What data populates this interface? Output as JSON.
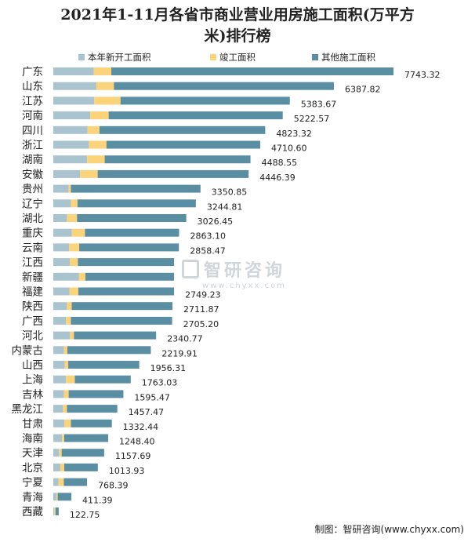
{
  "chart_data": {
    "type": "bar",
    "orientation": "horizontal",
    "stacked": true,
    "title_line1": "2021年1-11月各省市商业营业用房施工面积(万平方",
    "title_line2": "米)排行榜",
    "categories": [
      "广东",
      "山东",
      "江苏",
      "河南",
      "四川",
      "浙江",
      "湖南",
      "安徽",
      "贵州",
      "辽宁",
      "湖北",
      "重庆",
      "云南",
      "江西",
      "新疆",
      "福建",
      "陕西",
      "广西",
      "河北",
      "内蒙古",
      "山西",
      "上海",
      "吉林",
      "黑龙江",
      "甘肃",
      "海南",
      "天津",
      "北京",
      "宁夏",
      "青海",
      "西藏"
    ],
    "totals": [
      7743.32,
      6387.82,
      5383.67,
      5222.57,
      4823.32,
      4710.6,
      4488.55,
      4446.39,
      3350.85,
      3244.81,
      3026.45,
      2863.1,
      2858.47,
      2749.23,
      2749.23,
      2749.23,
      2711.87,
      2705.2,
      2340.77,
      2219.91,
      1956.31,
      1763.03,
      1595.47,
      1457.47,
      1332.44,
      1248.4,
      1157.69,
      1013.93,
      768.39,
      411.39,
      122.75
    ],
    "total_labels": [
      "7743.32",
      "6387.82",
      "5383.67",
      "5222.57",
      "4823.32",
      "4710.60",
      "4488.55",
      "4446.39",
      "3350.85",
      "3244.81",
      "3026.45",
      "2863.10",
      "2858.47",
      "",
      "",
      "2749.23",
      "2711.87",
      "2705.20",
      "2340.77",
      "2219.91",
      "1956.31",
      "1763.03",
      "1595.47",
      "1457.47",
      "1332.44",
      "1248.40",
      "1157.69",
      "1013.93",
      "768.39",
      "411.39",
      "122.75"
    ],
    "series": [
      {
        "name": "本年新开工面积",
        "color": "#a9c3cf",
        "values": [
          920,
          980,
          930,
          840,
          780,
          810,
          770,
          610,
          350,
          400,
          310,
          420,
          360,
          380,
          580,
          370,
          310,
          290,
          380,
          240,
          260,
          290,
          240,
          220,
          250,
          200,
          130,
          160,
          120,
          70,
          20
        ]
      },
      {
        "name": "竣工面积",
        "color": "#fbd37a",
        "values": [
          400,
          400,
          600,
          420,
          270,
          400,
          400,
          400,
          50,
          150,
          230,
          300,
          230,
          180,
          150,
          200,
          110,
          110,
          90,
          80,
          80,
          200,
          110,
          90,
          150,
          50,
          60,
          90,
          120,
          30,
          30
        ]
      },
      {
        "name": "其他施工面积",
        "color": "#5a8ea2",
        "values": [
          6423.32,
          5007.82,
          3853.67,
          3962.57,
          3773.32,
          3500.6,
          3318.55,
          3436.39,
          2950.85,
          2694.81,
          2486.45,
          2143.1,
          2268.47,
          2189.23,
          2019.23,
          2179.23,
          2291.87,
          2305.2,
          1870.77,
          1899.91,
          1616.31,
          1273.03,
          1245.47,
          1147.47,
          932.44,
          998.4,
          967.69,
          763.93,
          528.39,
          311.39,
          72.75
        ]
      }
    ],
    "legend_position": "top",
    "grid": false
  },
  "watermark": {
    "main": "智研咨询",
    "sub": "www.chyxx.com"
  },
  "footer": "制图：智研咨询(www.chyxx.com)"
}
